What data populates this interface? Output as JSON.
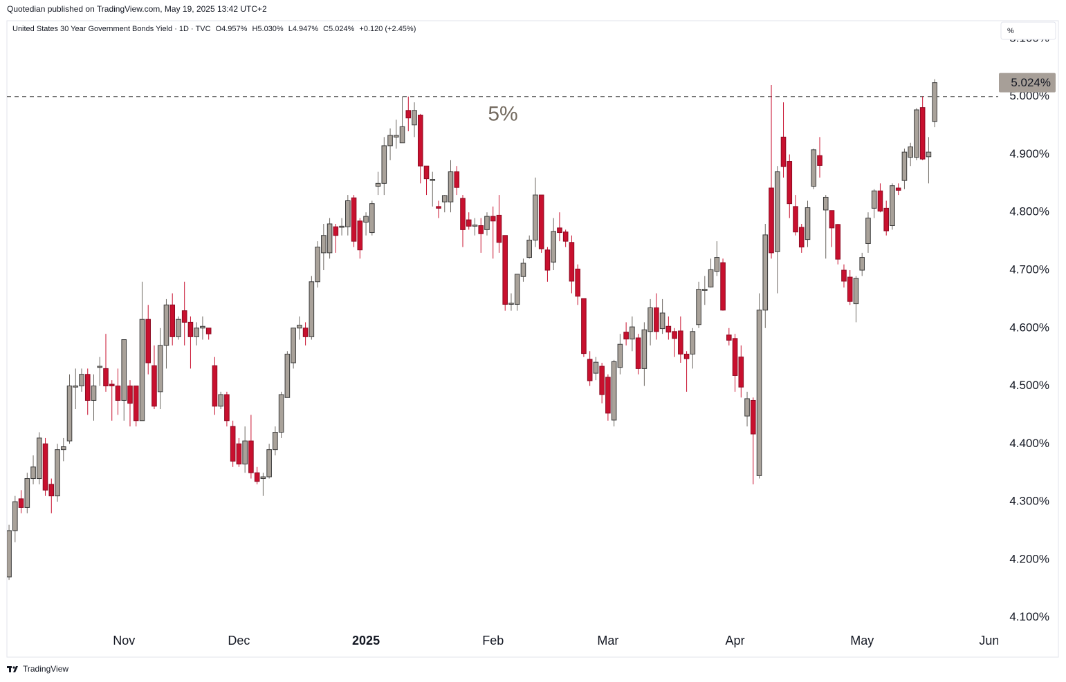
{
  "header": {
    "attribution": "Quotedian published on TradingView.com, May 19, 2025 13:42 UTC+2",
    "unit_button": "%",
    "footer": "TradingView"
  },
  "chart_data": {
    "type": "candlestick",
    "title": "United States 30 Year Government Bonds Yield · 1D · TVC",
    "legend_values": [
      "O4.957%",
      "H5.030%",
      "L4.947%",
      "C5.024%",
      "+0.120 (+2.45%)"
    ],
    "up_color": "#a9a29a",
    "down_color": "#c8102e",
    "open": [
      4.17,
      4.25,
      4.305,
      4.29,
      4.34,
      4.34,
      4.4,
      4.33,
      4.31,
      4.39,
      4.405,
      4.498,
      4.5,
      4.52,
      4.475,
      4.532,
      4.53,
      4.503,
      4.5,
      4.475,
      4.5,
      4.5,
      4.44,
      4.615,
      4.535,
      4.49,
      4.57,
      4.64,
      4.585,
      4.63,
      4.61,
      4.585,
      4.6,
      4.6,
      4.535,
      4.465,
      4.485,
      4.43,
      4.4,
      4.365,
      4.405,
      4.35,
      4.34,
      4.343,
      4.39,
      4.42,
      4.48,
      4.54,
      4.6,
      4.6,
      4.585,
      4.68,
      4.73,
      4.73,
      4.775,
      4.774,
      4.775,
      4.825,
      4.785,
      4.783,
      4.765,
      4.845,
      4.85,
      4.915,
      4.93,
      4.92,
      4.976,
      4.951,
      4.968,
      4.88,
      4.855,
      4.81,
      4.818,
      4.818,
      4.87,
      4.824,
      4.787,
      4.776,
      4.777,
      4.77,
      4.793,
      4.795,
      4.76,
      4.641,
      4.641,
      4.689,
      4.722,
      4.752,
      4.83,
      4.735,
      4.714,
      4.773,
      4.766,
      4.748,
      4.702,
      4.651,
      4.546,
      4.522,
      4.534,
      4.515,
      4.441,
      4.532,
      4.593,
      4.581,
      4.583,
      4.53,
      4.594,
      4.635,
      4.599,
      4.603,
      4.594,
      4.595,
      4.555,
      4.555,
      4.606,
      4.665,
      4.671,
      4.698,
      4.713,
      4.588,
      4.582,
      4.55,
      4.448,
      4.475,
      4.345,
      4.631,
      4.842,
      4.732,
      4.93,
      4.888,
      4.81,
      4.774,
      4.753,
      4.845,
      4.898,
      4.804,
      4.803,
      4.779,
      4.7,
      4.688,
      4.642,
      4.7,
      4.746,
      4.807,
      4.837,
      4.807,
      4.777,
      4.842,
      4.855,
      4.895,
      4.895,
      4.981,
      4.896,
      4.957
    ],
    "high": [
      4.26,
      4.31,
      4.32,
      4.35,
      4.38,
      4.42,
      4.41,
      4.34,
      4.4,
      4.41,
      4.52,
      4.53,
      4.53,
      4.53,
      4.52,
      4.55,
      4.59,
      4.51,
      4.53,
      4.58,
      4.51,
      4.5,
      4.68,
      4.64,
      4.57,
      4.6,
      4.65,
      4.66,
      4.62,
      4.68,
      4.62,
      4.61,
      4.62,
      4.6,
      4.55,
      4.49,
      4.49,
      4.44,
      4.41,
      4.43,
      4.45,
      4.36,
      4.35,
      4.4,
      4.43,
      4.49,
      4.56,
      4.6,
      4.62,
      4.61,
      4.69,
      4.75,
      4.78,
      4.79,
      4.78,
      4.79,
      4.83,
      4.83,
      4.79,
      4.8,
      4.82,
      4.87,
      4.93,
      4.945,
      4.96,
      5.0,
      5.0,
      4.99,
      4.97,
      4.88,
      4.87,
      4.82,
      4.83,
      4.89,
      4.88,
      4.83,
      4.8,
      4.79,
      4.79,
      4.8,
      4.81,
      4.83,
      4.76,
      4.66,
      4.69,
      4.72,
      4.76,
      4.86,
      4.83,
      4.74,
      4.79,
      4.8,
      4.77,
      4.76,
      4.71,
      4.65,
      4.56,
      4.55,
      4.54,
      4.52,
      4.545,
      4.59,
      4.61,
      4.62,
      4.59,
      4.61,
      4.65,
      4.66,
      4.65,
      4.62,
      4.6,
      4.62,
      4.56,
      4.6,
      4.68,
      4.69,
      4.72,
      4.75,
      4.72,
      4.6,
      4.59,
      4.57,
      4.49,
      4.48,
      4.66,
      4.78,
      5.02,
      4.88,
      4.99,
      4.9,
      4.83,
      4.78,
      4.82,
      4.91,
      4.93,
      4.83,
      4.8,
      4.78,
      4.71,
      4.7,
      4.69,
      4.73,
      4.8,
      4.84,
      4.85,
      4.82,
      4.85,
      4.85,
      4.91,
      4.92,
      4.98,
      5.0,
      4.93,
      5.03
    ],
    "low": [
      4.165,
      4.23,
      4.28,
      4.28,
      4.33,
      4.33,
      4.31,
      4.28,
      4.3,
      4.37,
      4.4,
      4.46,
      4.49,
      4.45,
      4.44,
      4.5,
      4.49,
      4.44,
      4.45,
      4.44,
      4.43,
      4.43,
      4.44,
      4.52,
      4.46,
      4.46,
      4.53,
      4.57,
      4.58,
      4.57,
      4.53,
      4.57,
      4.58,
      4.58,
      4.45,
      4.46,
      4.43,
      4.36,
      4.36,
      4.35,
      4.34,
      4.33,
      4.31,
      4.34,
      4.38,
      4.41,
      4.48,
      4.53,
      4.58,
      4.57,
      4.58,
      4.67,
      4.7,
      4.72,
      4.73,
      4.76,
      4.76,
      4.74,
      4.72,
      4.76,
      4.76,
      4.83,
      4.83,
      4.89,
      4.91,
      4.92,
      4.94,
      4.93,
      4.85,
      4.83,
      4.81,
      4.79,
      4.8,
      4.8,
      4.83,
      4.74,
      4.77,
      4.76,
      4.73,
      4.76,
      4.72,
      4.73,
      4.63,
      4.63,
      4.63,
      4.68,
      4.72,
      4.74,
      4.73,
      4.68,
      4.7,
      4.75,
      4.74,
      4.66,
      4.64,
      4.55,
      4.5,
      4.51,
      4.47,
      4.44,
      4.43,
      4.52,
      4.57,
      4.56,
      4.52,
      4.5,
      4.57,
      4.58,
      4.59,
      4.58,
      4.55,
      4.54,
      4.49,
      4.53,
      4.6,
      4.64,
      4.67,
      4.69,
      4.63,
      4.57,
      4.49,
      4.48,
      4.43,
      4.33,
      4.34,
      4.6,
      4.72,
      4.66,
      4.86,
      4.79,
      4.76,
      4.73,
      4.74,
      4.84,
      4.86,
      4.72,
      4.74,
      4.71,
      4.67,
      4.64,
      4.61,
      4.69,
      4.73,
      4.79,
      4.8,
      4.76,
      4.77,
      4.83,
      4.84,
      4.88,
      4.89,
      4.89,
      4.85,
      4.947
    ],
    "close": [
      4.25,
      4.3,
      4.29,
      4.34,
      4.36,
      4.41,
      4.32,
      4.31,
      4.39,
      4.395,
      4.5,
      4.5,
      4.52,
      4.475,
      4.5,
      4.534,
      4.5,
      4.5,
      4.475,
      4.58,
      4.47,
      4.44,
      4.615,
      4.54,
      4.465,
      4.57,
      4.64,
      4.585,
      4.615,
      4.61,
      4.585,
      4.6,
      4.603,
      4.59,
      4.465,
      4.485,
      4.44,
      4.37,
      4.365,
      4.405,
      4.35,
      4.335,
      4.343,
      4.39,
      4.42,
      4.485,
      4.555,
      4.6,
      4.605,
      4.585,
      4.68,
      4.74,
      4.76,
      4.78,
      4.76,
      4.776,
      4.82,
      4.75,
      4.735,
      4.793,
      4.815,
      4.85,
      4.915,
      4.933,
      4.933,
      4.948,
      4.963,
      4.976,
      4.88,
      4.858,
      4.857,
      4.807,
      4.829,
      4.87,
      4.843,
      4.77,
      4.776,
      4.778,
      4.763,
      4.793,
      4.785,
      4.748,
      4.641,
      4.643,
      4.693,
      4.712,
      4.752,
      4.83,
      4.737,
      4.7,
      4.767,
      4.765,
      4.75,
      4.681,
      4.655,
      4.556,
      4.509,
      4.541,
      4.485,
      4.453,
      4.542,
      4.572,
      4.581,
      4.602,
      4.53,
      4.597,
      4.635,
      4.594,
      4.626,
      4.593,
      4.582,
      4.555,
      4.547,
      4.594,
      4.667,
      4.667,
      4.701,
      4.722,
      4.631,
      4.579,
      4.518,
      4.498,
      4.478,
      4.417,
      4.631,
      4.761,
      4.73,
      4.87,
      4.879,
      4.815,
      4.766,
      4.74,
      4.808,
      4.908,
      4.881,
      4.826,
      4.773,
      4.719,
      4.681,
      4.646,
      4.686,
      4.722,
      4.79,
      4.837,
      4.802,
      4.768,
      4.846,
      4.838,
      4.904,
      4.913,
      4.977,
      4.892,
      4.904,
      5.024
    ],
    "xlim": [
      -0.35,
      163.5
    ],
    "xticks": [
      {
        "value": 19,
        "label": "Nov"
      },
      {
        "value": 38,
        "label": "Dec"
      },
      {
        "value": 59,
        "label": "2025"
      },
      {
        "value": 80,
        "label": "Feb"
      },
      {
        "value": 99,
        "label": "Mar"
      },
      {
        "value": 120,
        "label": "Apr"
      },
      {
        "value": 141,
        "label": "May"
      },
      {
        "value": 162,
        "label": "Jun"
      }
    ],
    "ylim": [
      4.078,
      5.131
    ],
    "yticks": [
      {
        "value": 4.1,
        "label": "4.100%"
      },
      {
        "value": 4.2,
        "label": "4.200%"
      },
      {
        "value": 4.3,
        "label": "4.300%"
      },
      {
        "value": 4.4,
        "label": "4.400%"
      },
      {
        "value": 4.5,
        "label": "4.500%"
      },
      {
        "value": 4.6,
        "label": "4.600%"
      },
      {
        "value": 4.7,
        "label": "4.700%"
      },
      {
        "value": 4.8,
        "label": "4.800%"
      },
      {
        "value": 4.9,
        "label": "4.900%"
      },
      {
        "value": 5.0,
        "label": "5.000%"
      },
      {
        "value": 5.1,
        "label": "5.100%"
      }
    ],
    "hline": {
      "value": 5.0,
      "label": "5%"
    },
    "last_price": {
      "value": 5.024,
      "label": "5.024%"
    }
  }
}
